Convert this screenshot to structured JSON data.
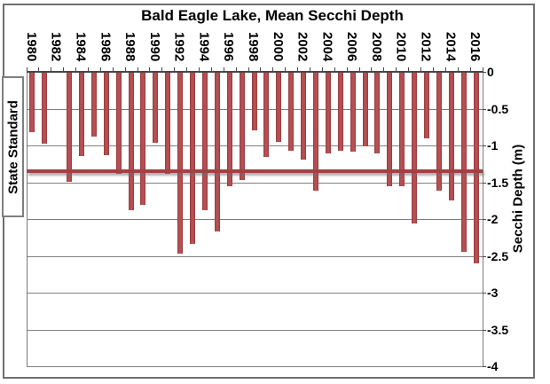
{
  "title": "Bald Eagle Lake, Mean Secchi Depth",
  "y_axis": {
    "label": "Secchi Depth (m)",
    "tick_labels": [
      "0",
      "-0.5",
      "-1",
      "-1.5",
      "-2",
      "-2.5",
      "-3",
      "-3.5",
      "-4"
    ],
    "min": -4,
    "max": 0
  },
  "x_axis": {
    "labels": [
      "1980",
      "1982",
      "1984",
      "1986",
      "1988",
      "1990",
      "1992",
      "1994",
      "1996",
      "1998",
      "2000",
      "2002",
      "2004",
      "2006",
      "2008",
      "2010",
      "2012",
      "2014",
      "2016"
    ]
  },
  "state_standard": {
    "label": "State Standard",
    "value": -1.35
  },
  "colors": {
    "bar_fill": "#b75052",
    "bar_edge": "#90393b",
    "standard_line": "#a04243",
    "gridline": "#808080",
    "axis": "#474747",
    "frame_border": "#6f6f6f"
  },
  "chart_data": {
    "type": "bar",
    "title": "Bald Eagle Lake, Mean Secchi Depth",
    "ylabel": "Secchi Depth (m)",
    "ylim": [
      -4,
      0
    ],
    "grid": true,
    "x": [
      1980,
      1981,
      1982,
      1983,
      1984,
      1985,
      1986,
      1987,
      1988,
      1989,
      1990,
      1991,
      1992,
      1993,
      1994,
      1995,
      1996,
      1997,
      1998,
      1999,
      2000,
      2001,
      2002,
      2003,
      2004,
      2005,
      2006,
      2007,
      2008,
      2009,
      2010,
      2011,
      2012,
      2013,
      2014,
      2015,
      2016
    ],
    "series": [
      {
        "name": "Mean Secchi Depth (m)",
        "values": [
          -0.82,
          -0.97,
          null,
          -1.49,
          -1.14,
          -0.88,
          -1.13,
          -1.39,
          -1.88,
          -1.81,
          -0.96,
          -1.39,
          -2.47,
          -2.34,
          -1.88,
          -2.17,
          -1.56,
          -1.47,
          -0.8,
          -1.16,
          -0.95,
          -1.07,
          -1.19,
          -1.62,
          -1.11,
          -1.07,
          -1.09,
          -1.01,
          -1.11,
          -1.55,
          -1.55,
          -2.06,
          -0.9,
          -1.61,
          -1.75,
          -2.44,
          -2.6
        ]
      }
    ],
    "missing_years": [
      1982
    ],
    "reference_line": {
      "label": "State Standard",
      "value": -1.35
    }
  }
}
